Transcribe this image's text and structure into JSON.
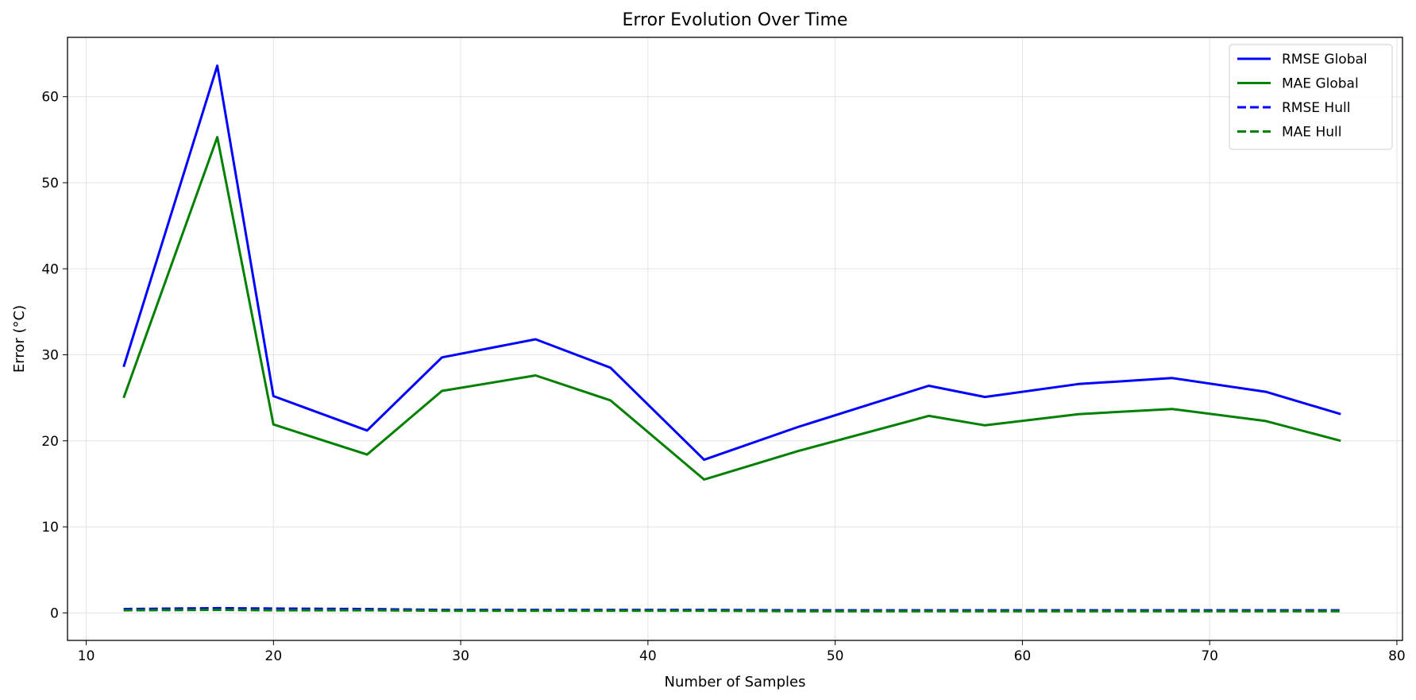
{
  "chart_data": {
    "type": "line",
    "title": "Error Evolution Over Time",
    "xlabel": "Number of Samples",
    "ylabel": "Error (°C)",
    "xlim": [
      9,
      80.3
    ],
    "ylim": [
      -3.2,
      66.9
    ],
    "xticks": [
      10,
      20,
      30,
      40,
      50,
      60,
      70,
      80
    ],
    "yticks": [
      0,
      10,
      20,
      30,
      40,
      50,
      60
    ],
    "grid": true,
    "legend_position": "top-right",
    "x": [
      12,
      17,
      20,
      25,
      29,
      34,
      38,
      43,
      48,
      55,
      58,
      63,
      68,
      73,
      77
    ],
    "series": [
      {
        "name": "RMSE Global",
        "color": "#0000ff",
        "style": "solid",
        "values": [
          28.6,
          63.6,
          25.2,
          21.2,
          29.7,
          31.8,
          28.5,
          17.8,
          21.6,
          26.4,
          25.1,
          26.6,
          27.3,
          25.7,
          23.1
        ]
      },
      {
        "name": "MAE Global",
        "color": "#008000",
        "style": "solid",
        "values": [
          25.0,
          55.3,
          21.9,
          18.4,
          25.8,
          27.6,
          24.7,
          15.5,
          18.8,
          22.9,
          21.8,
          23.1,
          23.7,
          22.3,
          20.0
        ]
      },
      {
        "name": "RMSE Hull",
        "color": "#0000ff",
        "style": "dashed",
        "values": [
          0.45,
          0.55,
          0.5,
          0.45,
          0.35,
          0.35,
          0.35,
          0.35,
          0.3,
          0.3,
          0.3,
          0.3,
          0.3,
          0.3,
          0.3
        ]
      },
      {
        "name": "MAE Hull",
        "color": "#008000",
        "style": "dashed",
        "values": [
          0.3,
          0.35,
          0.3,
          0.3,
          0.25,
          0.25,
          0.25,
          0.25,
          0.2,
          0.2,
          0.2,
          0.2,
          0.2,
          0.2,
          0.2
        ]
      }
    ]
  }
}
